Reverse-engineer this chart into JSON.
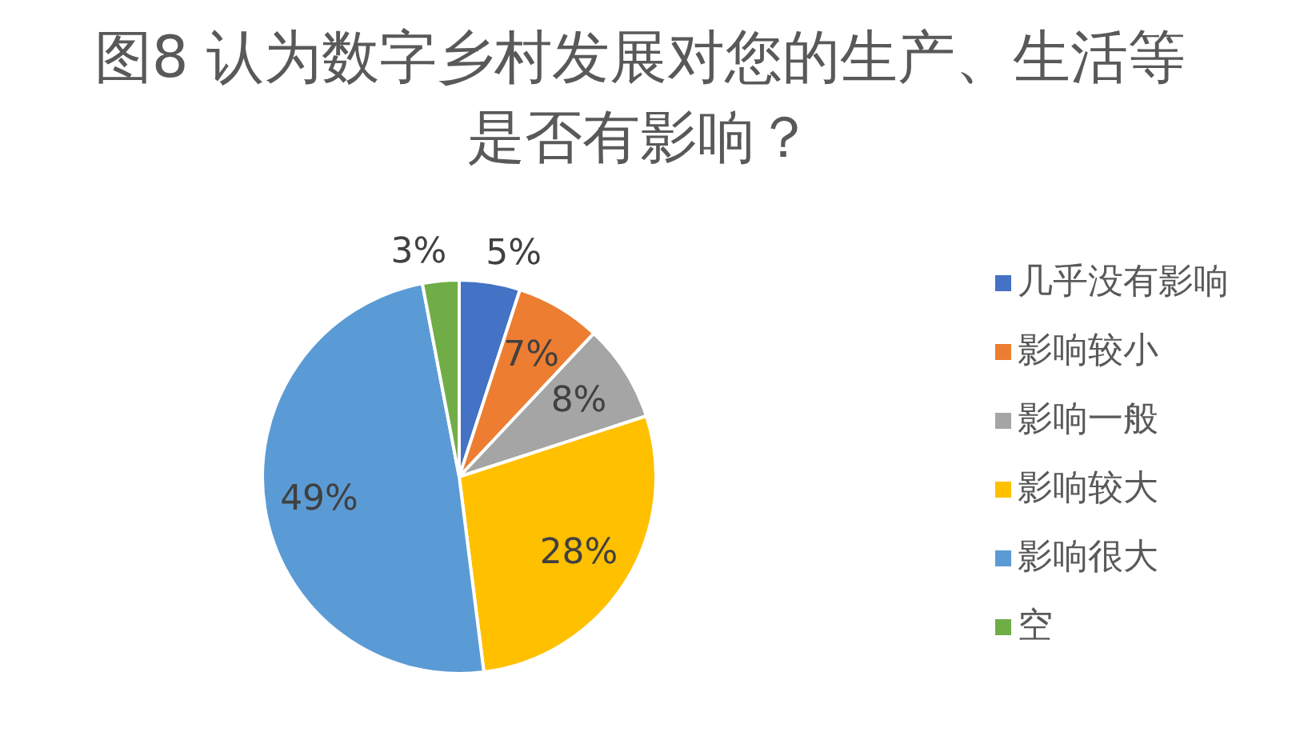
{
  "chart_data": {
    "type": "pie",
    "title": "图8 认为数字乡村发展对您的生产、生活等是否有影响？",
    "categories": [
      "几乎没有影响",
      "影响较小",
      "影响一般",
      "影响较大",
      "影响很大",
      "空"
    ],
    "values": [
      5,
      7,
      8,
      28,
      49,
      3
    ],
    "colors": [
      "#4472c4",
      "#ed7d31",
      "#a5a5a5",
      "#ffc000",
      "#5b9bd5",
      "#70ad47"
    ],
    "value_labels": [
      "5%",
      "7%",
      "8%",
      "28%",
      "49%",
      "3%"
    ],
    "legend": "right"
  }
}
